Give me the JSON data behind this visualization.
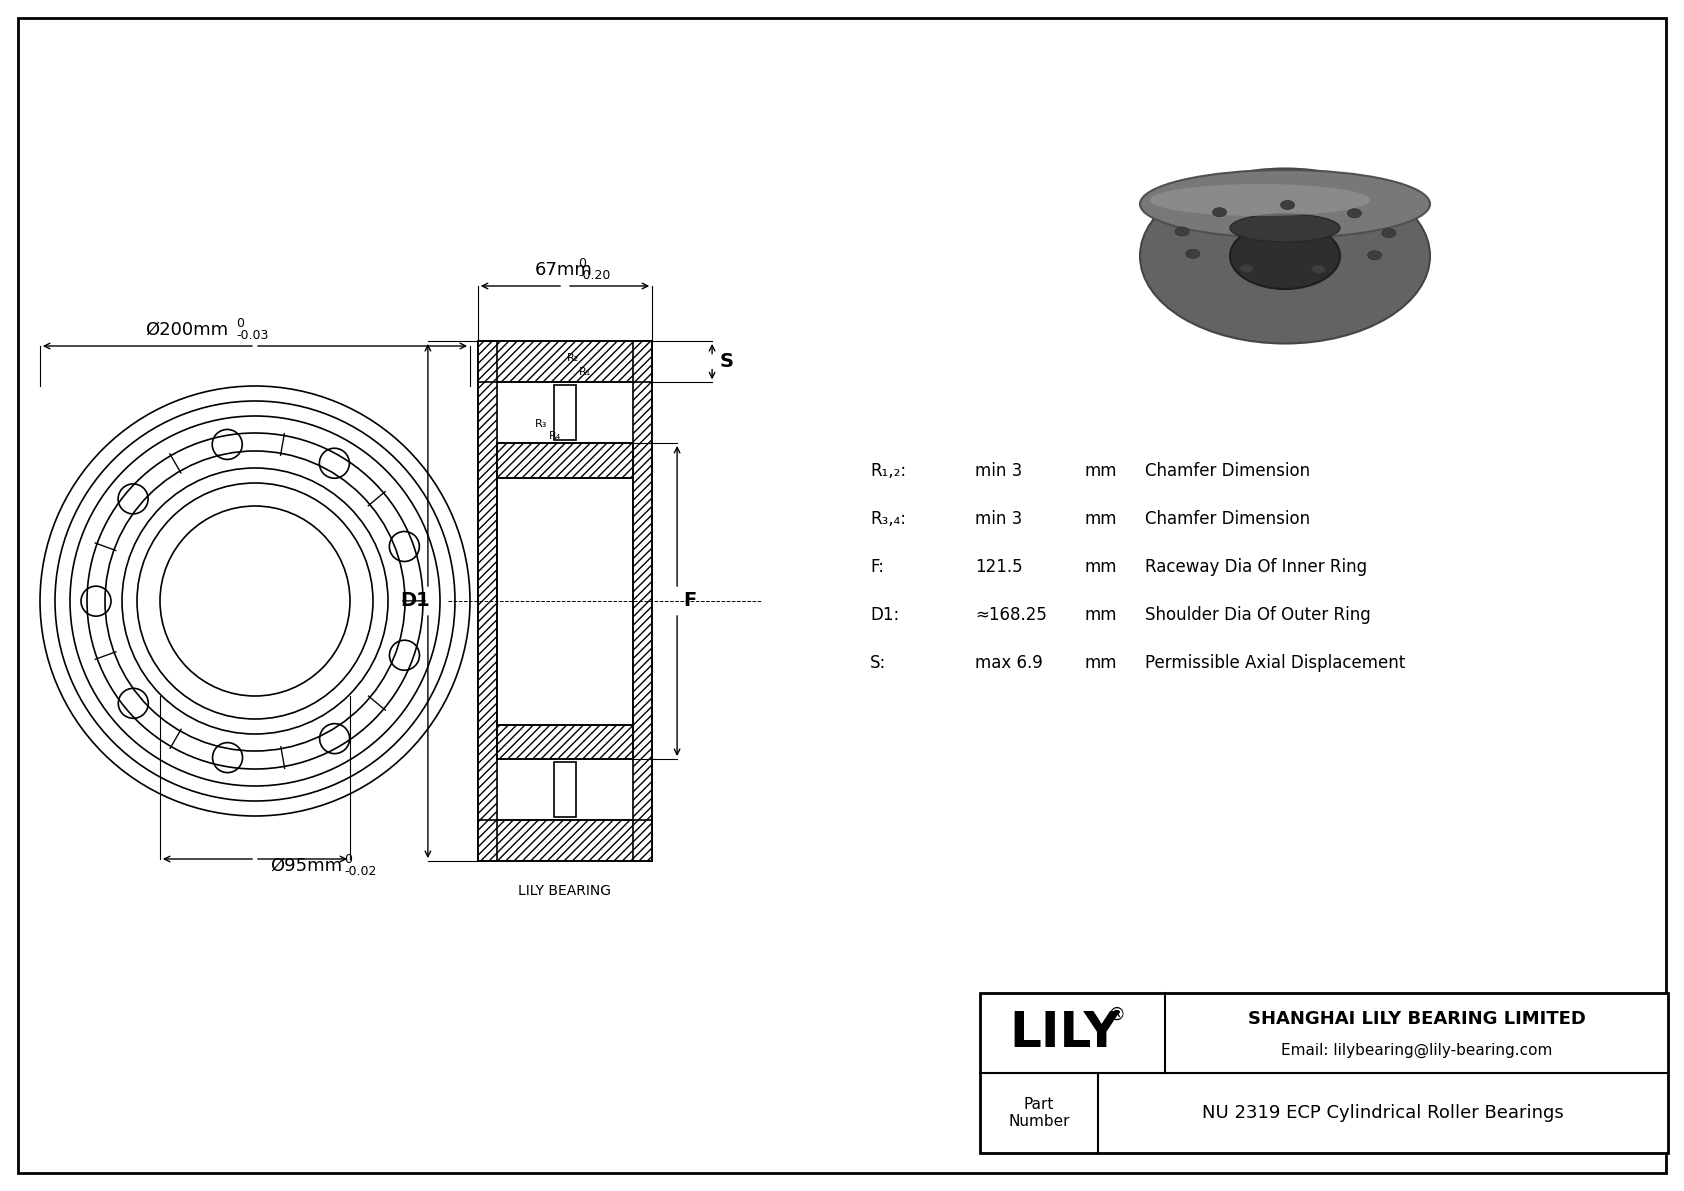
{
  "bg_color": "#ffffff",
  "line_color": "#000000",
  "company": "SHANGHAI LILY BEARING LIMITED",
  "email": "Email: lilybearing@lily-bearing.com",
  "part_label": "Part\nNumber",
  "part_number": "NU 2319 ECP Cylindrical Roller Bearings",
  "lily_logo": "LILY",
  "dim_outer": "Ø200mm",
  "dim_outer_tol_top": "0",
  "dim_outer_tol_bot": "-0.03",
  "dim_inner": "Ø95mm",
  "dim_inner_tol_top": "0",
  "dim_inner_tol_bot": "-0.02",
  "dim_width": "67mm",
  "dim_width_tol_top": "0",
  "dim_width_tol_bot": "-0.20",
  "label_S": "S",
  "label_D1": "D1",
  "label_F": "F",
  "val_R12": "min 3",
  "val_R34": "min 3",
  "val_F": "121.5",
  "val_D1": "≈168.25",
  "val_S": "max 6.9",
  "unit_mm": "mm",
  "desc_R12": "Chamfer Dimension",
  "desc_R34": "Chamfer Dimension",
  "desc_F": "Raceway Dia Of Inner Ring",
  "desc_D1": "Shoulder Dia Of Outer Ring",
  "desc_S": "Permissible Axial Displacement",
  "label_r2": "R₂",
  "label_r1": "R₁",
  "label_r3": "R₃",
  "label_r4": "R₄",
  "label_R12_lbl": "R₁,₂:",
  "label_R34_lbl": "R₃,₄:",
  "label_F_lbl": "F:",
  "label_D1_lbl": "D1:",
  "label_S_lbl": "S:",
  "lily_bearing_text": "LILY BEARING"
}
